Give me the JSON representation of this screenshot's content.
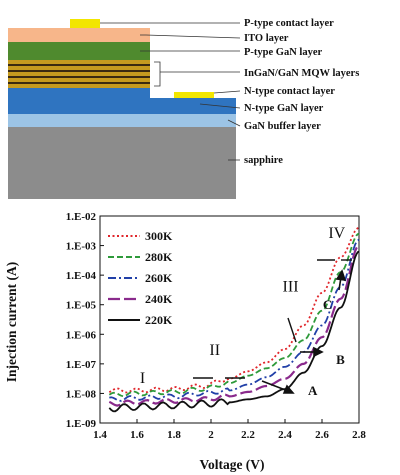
{
  "structure": {
    "layers": [
      {
        "label": "P-type contact layer",
        "color": "#f2e600"
      },
      {
        "label": "ITO layer",
        "color": "#f7b68a"
      },
      {
        "label": "P-type GaN layer",
        "color": "#4f8a2e"
      },
      {
        "label": "InGaN/GaN MQW layers",
        "color": "#c59a1f"
      },
      {
        "label": "N-type contact layer",
        "color": "#f2e600"
      },
      {
        "label": "N-type GaN layer",
        "color": "#2f74c0"
      },
      {
        "label": "GaN buffer layer",
        "color": "#9cc4e6"
      },
      {
        "label": "sapphire",
        "color": "#8c8c8c"
      }
    ]
  },
  "chart_data": {
    "type": "line",
    "xlabel": "Voltage (V)",
    "ylabel": "Injection current (A)",
    "xlim": [
      1.4,
      2.8
    ],
    "ylim_exp": [
      -9,
      -2
    ],
    "x_ticks": [
      "1.4",
      "1.6",
      "1.8",
      "2",
      "2.2",
      "2.4",
      "2.6",
      "2.8"
    ],
    "y_ticks": [
      "1.E-09",
      "1.E-08",
      "1.E-07",
      "1.E-06",
      "1.E-05",
      "1.E-04",
      "1.E-03",
      "1.E-02"
    ],
    "grid": false,
    "legend_position": "top-left",
    "series": [
      {
        "name": "300K",
        "color": "#e0262b",
        "dash": "dotted",
        "x": [
          1.45,
          1.6,
          1.8,
          1.95,
          2.1,
          2.2,
          2.3,
          2.4,
          2.5,
          2.6,
          2.7,
          2.8
        ],
        "log10_y": [
          -7.9,
          -7.9,
          -7.85,
          -7.75,
          -7.5,
          -7.25,
          -6.95,
          -6.5,
          -5.7,
          -4.6,
          -3.4,
          -2.4
        ]
      },
      {
        "name": "280K",
        "color": "#2e9a3a",
        "dash": "dashed",
        "x": [
          1.45,
          1.6,
          1.8,
          1.95,
          2.1,
          2.2,
          2.3,
          2.4,
          2.5,
          2.6,
          2.7,
          2.8
        ],
        "log10_y": [
          -8.05,
          -8.0,
          -7.95,
          -7.85,
          -7.65,
          -7.4,
          -7.15,
          -6.8,
          -6.2,
          -5.2,
          -3.9,
          -2.6
        ]
      },
      {
        "name": "260K",
        "color": "#2140a8",
        "dash": "dashdot",
        "x": [
          1.45,
          1.6,
          1.8,
          1.95,
          2.1,
          2.2,
          2.3,
          2.4,
          2.5,
          2.6,
          2.7,
          2.8
        ],
        "log10_y": [
          -8.2,
          -8.15,
          -8.1,
          -8.0,
          -7.9,
          -7.7,
          -7.45,
          -7.1,
          -6.6,
          -5.7,
          -4.4,
          -2.8
        ]
      },
      {
        "name": "240K",
        "color": "#8a2a8c",
        "dash": "longdash",
        "x": [
          1.45,
          1.6,
          1.8,
          1.95,
          2.1,
          2.2,
          2.3,
          2.4,
          2.5,
          2.6,
          2.7,
          2.8
        ],
        "log10_y": [
          -8.35,
          -8.3,
          -8.25,
          -8.2,
          -8.1,
          -7.95,
          -7.75,
          -7.5,
          -7.0,
          -6.1,
          -4.8,
          -3.0
        ]
      },
      {
        "name": "220K",
        "color": "#111111",
        "dash": "solid",
        "x": [
          1.45,
          1.6,
          1.8,
          1.95,
          2.1,
          2.2,
          2.3,
          2.4,
          2.5,
          2.6,
          2.7,
          2.8
        ],
        "log10_y": [
          -8.5,
          -8.45,
          -8.4,
          -8.35,
          -8.3,
          -8.2,
          -8.1,
          -7.85,
          -7.3,
          -6.4,
          -5.1,
          -3.2
        ]
      }
    ],
    "annotations": [
      {
        "text": "I",
        "x": 1.63,
        "log10_y": -7.65
      },
      {
        "text": "II",
        "x": 2.02,
        "log10_y": -6.7
      },
      {
        "text": "III",
        "x": 2.43,
        "log10_y": -4.55
      },
      {
        "text": "IV",
        "x": 2.68,
        "log10_y": -2.75
      },
      {
        "text": "A",
        "x": 2.55,
        "log10_y": -8.05
      },
      {
        "text": "B",
        "x": 2.7,
        "log10_y": -7.0
      },
      {
        "text": "C",
        "x": 2.63,
        "log10_y": -5.15
      }
    ]
  }
}
